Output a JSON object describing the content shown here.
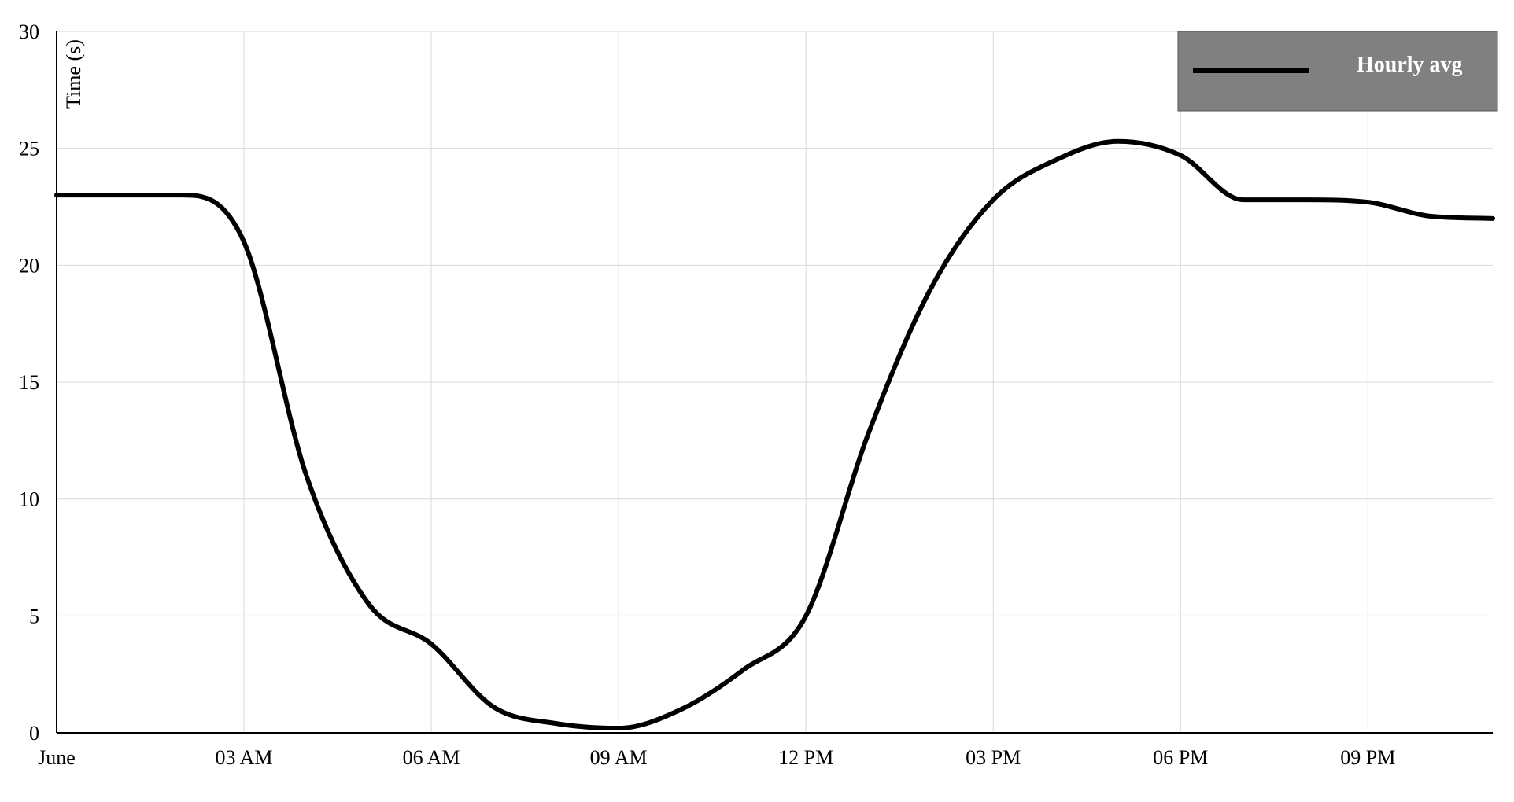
{
  "chart_data": {
    "type": "line",
    "title": "",
    "xlabel": "",
    "ylabel": "Time (s)",
    "xlim": [
      0,
      23
    ],
    "ylim": [
      0,
      30
    ],
    "yticks": [
      0,
      5,
      10,
      15,
      20,
      25,
      30
    ],
    "xticks": [
      {
        "x": 0,
        "label": "June"
      },
      {
        "x": 3,
        "label": "03 AM"
      },
      {
        "x": 6,
        "label": "06 AM"
      },
      {
        "x": 9,
        "label": "09 AM"
      },
      {
        "x": 12,
        "label": "12 PM"
      },
      {
        "x": 15,
        "label": "03 PM"
      },
      {
        "x": 18,
        "label": "06 PM"
      },
      {
        "x": 21,
        "label": "09 PM"
      }
    ],
    "grid": true,
    "legend_position": "top-right",
    "series": [
      {
        "name": "Hourly avg",
        "color": "#000000",
        "x": [
          0,
          1,
          2,
          3,
          4,
          5,
          6,
          7,
          8,
          9,
          10,
          11,
          12,
          13,
          14,
          15,
          16,
          17,
          18,
          19,
          20,
          21,
          22,
          23
        ],
        "values": [
          23,
          23,
          23,
          21,
          11,
          5.5,
          3.8,
          1.1,
          0.4,
          0.2,
          1.0,
          2.7,
          5.0,
          12.8,
          19.0,
          22.8,
          24.5,
          25.3,
          24.7,
          22.8,
          22.8,
          22.7,
          22.1,
          22.0
        ]
      }
    ]
  },
  "legend": {
    "background": "#808080",
    "items": [
      {
        "label": "Hourly avg",
        "color": "#000000"
      }
    ]
  }
}
